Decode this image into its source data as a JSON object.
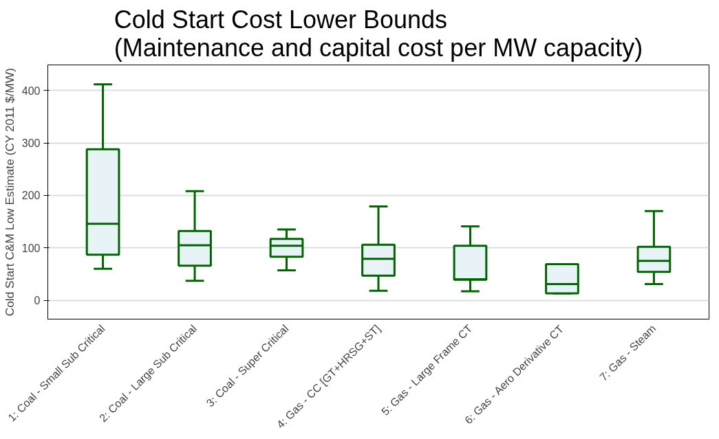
{
  "chart_data": {
    "type": "box",
    "title": "Cold Start Cost Lower Bounds\n(Maintenance and capital cost per MW capacity)",
    "ylabel": "Cold Start C&M Low Estimate (CY 2011 $/MW)",
    "categories": [
      "1: Coal - Small Sub Critical",
      "2: Coal - Large Sub Critical",
      "3: Coal - Super Critical",
      "4: Gas - CC [GT+HRSG+ST]",
      "5: Gas - Large Frame CT",
      "6: Gas - Aero Derivative CT",
      "7: Gas - Steam"
    ],
    "boxes": [
      {
        "low": 60,
        "q1": 87,
        "median": 146,
        "q3": 288,
        "high": 412
      },
      {
        "low": 37,
        "q1": 66,
        "median": 105,
        "q3": 132,
        "high": 208
      },
      {
        "low": 57,
        "q1": 83,
        "median": 104,
        "q3": 117,
        "high": 135
      },
      {
        "low": 18,
        "q1": 47,
        "median": 79,
        "q3": 106,
        "high": 179
      },
      {
        "low": 17,
        "q1": 39,
        "median": 40,
        "q3": 104,
        "high": 141
      },
      {
        "low": 13,
        "q1": 13,
        "median": 31,
        "q3": 69,
        "high": 69
      },
      {
        "low": 31,
        "q1": 54,
        "median": 75,
        "q3": 102,
        "high": 170
      }
    ],
    "color": "#006400",
    "ylim": [
      -36,
      449
    ],
    "yticks": [
      0,
      100,
      200,
      300,
      400
    ],
    "grid": "y"
  }
}
